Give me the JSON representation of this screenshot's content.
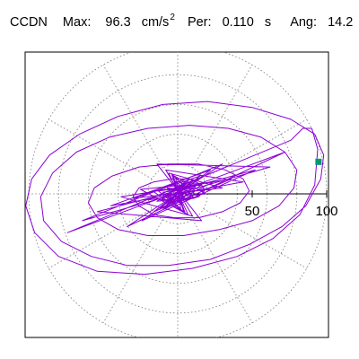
{
  "header": {
    "station": "CCDN",
    "max_label": "Max:",
    "max_value": "96.3",
    "max_unit": "cm/s",
    "max_unit_exp": "2",
    "per_label": "Per:",
    "per_value": "0.110",
    "per_unit": "s",
    "ang_label": "Ang:",
    "ang_value": "14.2"
  },
  "colors": {
    "trace": "#8a00d4",
    "marker": "#009a6e",
    "grid": "#777777",
    "axis": "#000000"
  },
  "chart_data": {
    "type": "polar",
    "radial_max": 100,
    "radial_ticks": [
      50,
      100
    ],
    "rings": [
      20,
      40,
      60,
      80,
      100
    ],
    "spokes_deg": [
      0,
      30,
      60,
      90,
      120,
      150,
      180,
      210,
      240,
      270,
      300,
      330
    ],
    "grid": true,
    "series": [
      {
        "points": [
          [
            0,
            0
          ],
          [
            4,
            3
          ],
          [
            -3,
            6
          ],
          [
            6,
            -4
          ],
          [
            -5,
            -5
          ],
          [
            8,
            2
          ],
          [
            -7,
            4
          ],
          [
            3,
            -8
          ],
          [
            -2,
            9
          ],
          [
            9,
            -1
          ],
          [
            -9,
            -2
          ],
          [
            5,
            7
          ],
          [
            -6,
            -7
          ],
          [
            10,
            4
          ],
          [
            -10,
            1
          ],
          [
            2,
            -10
          ],
          [
            -1,
            11
          ],
          [
            11,
            -3
          ],
          [
            -11,
            -4
          ],
          [
            6,
            9
          ],
          [
            -8,
            -8
          ],
          [
            12,
            5
          ],
          [
            -13,
            2
          ],
          [
            4,
            -12
          ],
          [
            -3,
            12
          ],
          [
            14,
            -2
          ],
          [
            -14,
            -5
          ],
          [
            8,
            10
          ],
          [
            -9,
            -10
          ],
          [
            16,
            6
          ],
          [
            -17,
            2
          ],
          [
            5,
            -13
          ],
          [
            -4,
            13
          ],
          [
            19,
            0
          ],
          [
            -20,
            -4
          ],
          [
            10,
            9
          ],
          [
            -12,
            -10
          ],
          [
            24,
            8
          ],
          [
            -25,
            3
          ],
          [
            7,
            -14
          ],
          [
            -6,
            14
          ],
          [
            30,
            4
          ],
          [
            -30,
            -3
          ],
          [
            15,
            12
          ],
          [
            -16,
            -12
          ],
          [
            36,
            10
          ],
          [
            -38,
            -2
          ],
          [
            10,
            -15
          ],
          [
            -8,
            16
          ],
          [
            44,
            8
          ],
          [
            -45,
            -8
          ],
          [
            22,
            16
          ],
          [
            -24,
            -18
          ],
          [
            52,
            16
          ],
          [
            -54,
            -12
          ],
          [
            16,
            -18
          ],
          [
            -14,
            20
          ],
          [
            62,
            18
          ],
          [
            -64,
            -18
          ],
          [
            30,
            20
          ],
          [
            -34,
            -22
          ],
          [
            72,
            28
          ],
          [
            -74,
            -26
          ],
          [
            76,
            36
          ],
          [
            84,
            44
          ],
          [
            90,
            44
          ],
          [
            94,
            30
          ],
          [
            92,
            6
          ],
          [
            82,
            -14
          ],
          [
            64,
            -30
          ],
          [
            40,
            -42
          ],
          [
            10,
            -50
          ],
          [
            -22,
            -54
          ],
          [
            -54,
            -52
          ],
          [
            -80,
            -42
          ],
          [
            -96,
            -26
          ],
          [
            -102,
            -8
          ],
          [
            -98,
            10
          ],
          [
            -86,
            26
          ],
          [
            -66,
            40
          ],
          [
            -40,
            52
          ],
          [
            -10,
            60
          ],
          [
            20,
            62
          ],
          [
            50,
            58
          ],
          [
            76,
            50
          ],
          [
            92,
            40
          ],
          [
            98,
            26
          ],
          [
            96,
            10
          ],
          [
            86,
            -8
          ],
          [
            70,
            -22
          ],
          [
            48,
            -34
          ],
          [
            22,
            -44
          ],
          [
            -6,
            -48
          ],
          [
            -34,
            -48
          ],
          [
            -58,
            -42
          ],
          [
            -78,
            -32
          ],
          [
            -90,
            -18
          ],
          [
            -92,
            -2
          ],
          [
            -84,
            14
          ],
          [
            -68,
            28
          ],
          [
            -46,
            38
          ],
          [
            -20,
            44
          ],
          [
            8,
            46
          ],
          [
            34,
            44
          ],
          [
            56,
            38
          ],
          [
            72,
            28
          ],
          [
            80,
            16
          ],
          [
            78,
            4
          ],
          [
            68,
            -8
          ],
          [
            50,
            -18
          ],
          [
            28,
            -24
          ],
          [
            4,
            -28
          ],
          [
            -20,
            -28
          ],
          [
            -40,
            -24
          ],
          [
            -54,
            -16
          ],
          [
            -60,
            -6
          ],
          [
            -56,
            4
          ],
          [
            -44,
            12
          ],
          [
            -26,
            18
          ],
          [
            -6,
            20
          ],
          [
            14,
            20
          ],
          [
            32,
            16
          ],
          [
            44,
            10
          ],
          [
            48,
            2
          ],
          [
            42,
            -6
          ],
          [
            30,
            -12
          ],
          [
            14,
            -16
          ],
          [
            -2,
            -16
          ],
          [
            -16,
            -14
          ],
          [
            -26,
            -8
          ],
          [
            -30,
            -2
          ],
          [
            -26,
            4
          ],
          [
            -16,
            8
          ],
          [
            -4,
            10
          ],
          [
            8,
            10
          ],
          [
            16,
            6
          ],
          [
            18,
            2
          ],
          [
            14,
            -2
          ],
          [
            6,
            -4
          ],
          [
            0,
            -2
          ],
          [
            -4,
            2
          ],
          [
            -2,
            4
          ],
          [
            2,
            3
          ],
          [
            3,
            0
          ],
          [
            0,
            -1
          ]
        ]
      }
    ],
    "peak_marker": {
      "x": 94.5,
      "y": 21.5
    }
  }
}
